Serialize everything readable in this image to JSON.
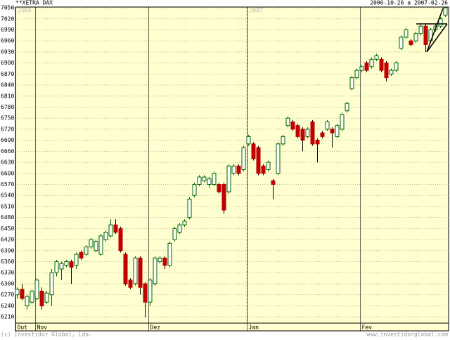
{
  "chart_data": {
    "type": "candlestick",
    "title": "**XETRA DAX",
    "date_range": "2006-10-26 a 2007-02-26",
    "footer_left": "(c) Investidor Global, Lda.",
    "footer_right": "www.investidorglobal.com",
    "years": [
      {
        "label": "2006",
        "index": 0
      },
      {
        "label": "2007",
        "index": 47
      }
    ],
    "months": [
      {
        "label": "Out",
        "index": 0
      },
      {
        "label": "Nov",
        "index": 4
      },
      {
        "label": "Dez",
        "index": 27
      },
      {
        "label": "Jan",
        "index": 47
      },
      {
        "label": "Fev",
        "index": 70
      }
    ],
    "ylim": [
      6193,
      7052
    ],
    "yticks": [
      6210,
      6240,
      6270,
      6300,
      6330,
      6360,
      6390,
      6420,
      6450,
      6480,
      6510,
      6540,
      6570,
      6600,
      6630,
      6660,
      6690,
      6720,
      6750,
      6780,
      6810,
      6840,
      6870,
      6900,
      6930,
      6960,
      6990,
      7020,
      7050
    ],
    "grid": true,
    "up_color": "#006400",
    "down_color": "#c00000",
    "background": "#ffffd0",
    "ohlc": [
      [
        6270,
        6290,
        6260,
        6285
      ],
      [
        6285,
        6300,
        6255,
        6260
      ],
      [
        6240,
        6270,
        6230,
        6265
      ],
      [
        6250,
        6285,
        6245,
        6280
      ],
      [
        6260,
        6315,
        6255,
        6310
      ],
      [
        6280,
        6290,
        6230,
        6240
      ],
      [
        6250,
        6280,
        6245,
        6275
      ],
      [
        6270,
        6340,
        6240,
        6330
      ],
      [
        6330,
        6365,
        6320,
        6360
      ],
      [
        6340,
        6360,
        6310,
        6355
      ],
      [
        6350,
        6365,
        6345,
        6360
      ],
      [
        6360,
        6365,
        6300,
        6345
      ],
      [
        6350,
        6385,
        6340,
        6380
      ],
      [
        6385,
        6390,
        6365,
        6370
      ],
      [
        6380,
        6405,
        6375,
        6400
      ],
      [
        6400,
        6425,
        6395,
        6420
      ],
      [
        6390,
        6420,
        6385,
        6415
      ],
      [
        6380,
        6435,
        6375,
        6430
      ],
      [
        6420,
        6445,
        6415,
        6440
      ],
      [
        6430,
        6475,
        6425,
        6460
      ],
      [
        6460,
        6475,
        6435,
        6440
      ],
      [
        6450,
        6455,
        6385,
        6390
      ],
      [
        6380,
        6385,
        6295,
        6300
      ],
      [
        6310,
        6315,
        6285,
        6290
      ],
      [
        6300,
        6375,
        6295,
        6370
      ],
      [
        6370,
        6375,
        6270,
        6290
      ],
      [
        6300,
        6305,
        6210,
        6250
      ],
      [
        6250,
        6315,
        6240,
        6310
      ],
      [
        6300,
        6375,
        6295,
        6370
      ],
      [
        6360,
        6375,
        6355,
        6370
      ],
      [
        6370,
        6375,
        6340,
        6350
      ],
      [
        6350,
        6415,
        6345,
        6410
      ],
      [
        6420,
        6455,
        6415,
        6450
      ],
      [
        6440,
        6465,
        6435,
        6460
      ],
      [
        6460,
        6475,
        6455,
        6470
      ],
      [
        6480,
        6535,
        6475,
        6530
      ],
      [
        6540,
        6575,
        6535,
        6570
      ],
      [
        6570,
        6595,
        6565,
        6590
      ],
      [
        6580,
        6595,
        6575,
        6590
      ],
      [
        6570,
        6590,
        6560,
        6585
      ],
      [
        6570,
        6605,
        6565,
        6600
      ],
      [
        6570,
        6575,
        6545,
        6550
      ],
      [
        6570,
        6575,
        6490,
        6500
      ],
      [
        6550,
        6625,
        6545,
        6620
      ],
      [
        6600,
        6625,
        6595,
        6620
      ],
      [
        6620,
        6625,
        6595,
        6600
      ],
      [
        6610,
        6675,
        6605,
        6670
      ],
      [
        6680,
        6705,
        6675,
        6700
      ],
      [
        6680,
        6685,
        6635,
        6640
      ],
      [
        6670,
        6675,
        6595,
        6600
      ],
      [
        6620,
        6625,
        6595,
        6600
      ],
      [
        6610,
        6635,
        6605,
        6630
      ],
      [
        6580,
        6585,
        6530,
        6570
      ],
      [
        6600,
        6685,
        6595,
        6680
      ],
      [
        6680,
        6705,
        6675,
        6700
      ],
      [
        6730,
        6755,
        6725,
        6750
      ],
      [
        6740,
        6745,
        6715,
        6720
      ],
      [
        6730,
        6735,
        6695,
        6700
      ],
      [
        6720,
        6725,
        6660,
        6690
      ],
      [
        6700,
        6725,
        6695,
        6720
      ],
      [
        6740,
        6745,
        6675,
        6680
      ],
      [
        6690,
        6695,
        6630,
        6680
      ],
      [
        6710,
        6715,
        6695,
        6700
      ],
      [
        6720,
        6745,
        6715,
        6740
      ],
      [
        6720,
        6725,
        6670,
        6710
      ],
      [
        6700,
        6735,
        6695,
        6730
      ],
      [
        6720,
        6765,
        6715,
        6760
      ],
      [
        6770,
        6795,
        6765,
        6790
      ],
      [
        6830,
        6865,
        6825,
        6860
      ],
      [
        6860,
        6885,
        6855,
        6880
      ],
      [
        6880,
        6895,
        6875,
        6890
      ],
      [
        6900,
        6905,
        6875,
        6880
      ],
      [
        6890,
        6915,
        6885,
        6910
      ],
      [
        6910,
        6925,
        6905,
        6920
      ],
      [
        6910,
        6915,
        6875,
        6880
      ],
      [
        6900,
        6905,
        6850,
        6860
      ],
      [
        6870,
        6885,
        6865,
        6880
      ],
      [
        6880,
        6905,
        6875,
        6900
      ],
      [
        6940,
        6975,
        6935,
        6970
      ],
      [
        6970,
        6995,
        6965,
        6990
      ],
      [
        6960,
        6965,
        6945,
        6950
      ],
      [
        6960,
        6985,
        6955,
        6980
      ],
      [
        6980,
        7005,
        6975,
        7000
      ],
      [
        7000,
        7005,
        6930,
        6950
      ],
      [
        6960,
        6995,
        6955,
        6990
      ],
      [
        6990,
        7005,
        6985,
        7000
      ],
      [
        7000,
        7025,
        6995,
        7020
      ],
      [
        7030,
        7052,
        7025,
        7050
      ]
    ]
  }
}
